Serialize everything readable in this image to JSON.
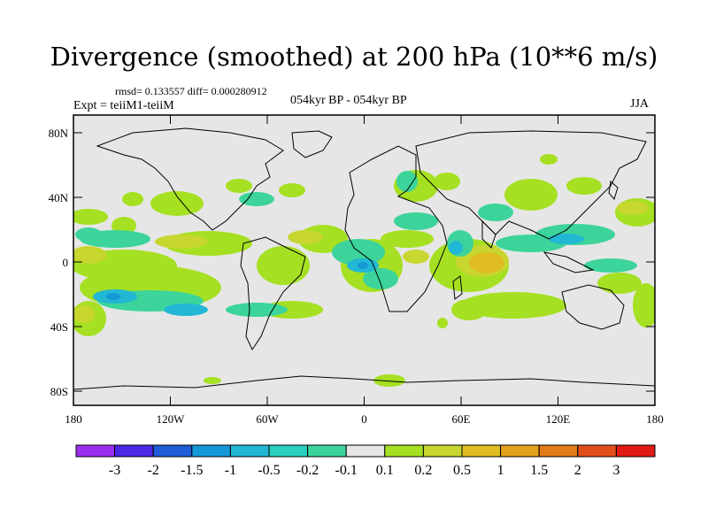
{
  "title": "Divergence (smoothed) at 200 hPa (10**6 m/s)",
  "stats": "rmsd= 0.133557 diff= 0.000280912",
  "expt": "Expt = teiiM1-teiiM",
  "center_label": "054kyr BP - 054kyr BP",
  "season": "JJA",
  "map": {
    "background_color": "#e6e6e6",
    "lat_ticks": [
      "80N",
      "40N",
      "0",
      "40S",
      "80S"
    ],
    "lon_ticks": [
      "180",
      "120W",
      "60W",
      "0",
      "60E",
      "120E",
      "180"
    ]
  },
  "colorbar": {
    "colors": [
      "#9b2ff0",
      "#4b28e6",
      "#1f5ed8",
      "#1598d8",
      "#22b7d4",
      "#2ad0c0",
      "#3cd49a",
      "#e6e6e6",
      "#a6e022",
      "#c8d630",
      "#e0be22",
      "#e3a21a",
      "#e27b1a",
      "#e24e1a",
      "#e01a14"
    ],
    "labels": [
      "-3",
      "-2",
      "-1.5",
      "-1",
      "-0.5",
      "-0.2",
      "-0.1",
      "0.1",
      "0.2",
      "0.5",
      "1",
      "1.5",
      "2",
      "3"
    ]
  }
}
